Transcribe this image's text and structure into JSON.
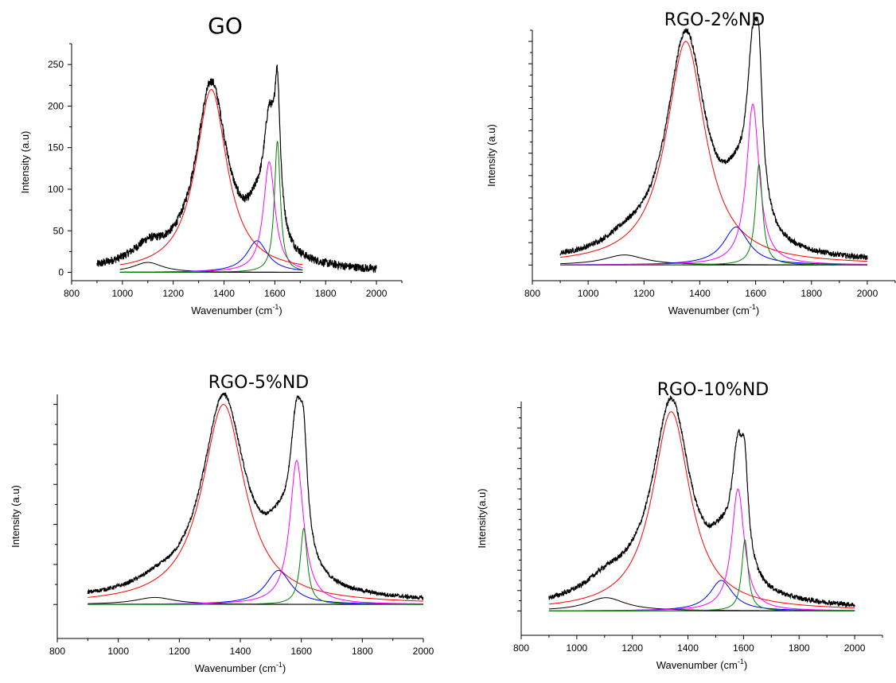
{
  "chart_data": [
    {
      "type": "line",
      "title": "GO",
      "xlabel": "Wavenumber (cm",
      "xlabel_sup": "-1",
      "xlabel_close": ")",
      "ylabel": "Intensity (a.u)",
      "xlim": [
        800,
        2100
      ],
      "ylim": [
        -10,
        275
      ],
      "xticks": [
        800,
        1000,
        1200,
        1400,
        1600,
        1800,
        2000
      ],
      "yticks": [
        0,
        50,
        100,
        150,
        200,
        250
      ],
      "show_ytick_labels": true,
      "baseline": 0,
      "noise": 5,
      "noise_x_range": [
        900,
        2000
      ],
      "fit_x_range": [
        990,
        1710
      ],
      "background": [
        [
          900,
          2
        ],
        [
          1000,
          5
        ],
        [
          1100,
          10
        ],
        [
          1200,
          5
        ],
        [
          1700,
          2
        ],
        [
          2000,
          0
        ]
      ],
      "series": [
        {
          "color": "#000000",
          "center": 1100,
          "height": 12,
          "width": 140
        },
        {
          "color": "#ff0000",
          "center": 1350,
          "height": 220,
          "width": 150
        },
        {
          "color": "#0000ff",
          "center": 1530,
          "height": 38,
          "width": 100
        },
        {
          "color": "#ff00ff",
          "center": 1578,
          "height": 133,
          "width": 55
        },
        {
          "color": "#008000",
          "center": 1610,
          "height": 158,
          "width": 28
        }
      ]
    },
    {
      "type": "line",
      "title": "RGO-2%ND",
      "xlabel": "Wavenumber (cm",
      "xlabel_sup": "-1",
      "xlabel_close": ")",
      "ylabel": "Intensity (a.u)",
      "xlim": [
        800,
        2100
      ],
      "ylim": [
        -0.07,
        1.05
      ],
      "xticks": [
        800,
        1000,
        1200,
        1400,
        1600,
        1800,
        2000
      ],
      "yticks": [
        0,
        0.1,
        0.2,
        0.3,
        0.4,
        0.5,
        0.6,
        0.7,
        0.8,
        0.9,
        1.0
      ],
      "show_ytick_labels": false,
      "baseline": 0,
      "noise": 0.012,
      "noise_x_range": [
        900,
        2000
      ],
      "fit_x_range": [
        900,
        2000
      ],
      "background": [
        [
          900,
          0.01
        ],
        [
          1500,
          0.02
        ],
        [
          1700,
          0.015
        ],
        [
          2000,
          0.01
        ]
      ],
      "series": [
        {
          "color": "#000000",
          "center": 1130,
          "height": 0.045,
          "width": 180
        },
        {
          "color": "#ff0000",
          "center": 1350,
          "height": 1.0,
          "width": 170
        },
        {
          "color": "#0000ff",
          "center": 1530,
          "height": 0.17,
          "width": 110
        },
        {
          "color": "#ff00ff",
          "center": 1590,
          "height": 0.72,
          "width": 55
        },
        {
          "color": "#008000",
          "center": 1612,
          "height": 0.45,
          "width": 30
        }
      ]
    },
    {
      "type": "line",
      "title": "RGO-5%ND",
      "xlabel": "Wavenumber (cm",
      "xlabel_sup": "-1",
      "xlabel_close": ")",
      "ylabel": "Intensity (a.u)",
      "xlim": [
        800,
        2000
      ],
      "ylim": [
        -0.17,
        1.05
      ],
      "xticks": [
        800,
        1000,
        1200,
        1400,
        1600,
        1800,
        2000
      ],
      "yticks": [
        0,
        0.2,
        0.4,
        0.6,
        0.8,
        1.0
      ],
      "show_ytick_labels": false,
      "baseline": 0,
      "noise": 0.01,
      "noise_x_range": [
        900,
        2000
      ],
      "fit_x_range": [
        900,
        2000
      ],
      "background": [
        [
          900,
          0.02
        ],
        [
          1500,
          0.025
        ],
        [
          1700,
          0.02
        ],
        [
          2000,
          0.01
        ]
      ],
      "series": [
        {
          "color": "#000000",
          "center": 1120,
          "height": 0.035,
          "width": 160
        },
        {
          "color": "#ff0000",
          "center": 1345,
          "height": 1.0,
          "width": 170
        },
        {
          "color": "#0000ff",
          "center": 1525,
          "height": 0.17,
          "width": 100
        },
        {
          "color": "#ff00ff",
          "center": 1585,
          "height": 0.72,
          "width": 55
        },
        {
          "color": "#008000",
          "center": 1608,
          "height": 0.38,
          "width": 28
        }
      ]
    },
    {
      "type": "line",
      "title": "RGO-10%ND",
      "xlabel": "Wavenumber (cm",
      "xlabel_sup": "-1",
      "xlabel_close": ")",
      "ylabel": "Intensity(a.u)",
      "xlim": [
        800,
        2100
      ],
      "ylim": [
        -0.12,
        1.03
      ],
      "xticks": [
        800,
        1000,
        1200,
        1400,
        1600,
        1800,
        2000
      ],
      "yticks": [
        0,
        0.1,
        0.2,
        0.3,
        0.4,
        0.5,
        0.6,
        0.7,
        0.8,
        0.9,
        1.0
      ],
      "show_ytick_labels": false,
      "baseline": 0,
      "noise": 0.012,
      "noise_x_range": [
        900,
        2000
      ],
      "fit_x_range": [
        900,
        2000
      ],
      "background": [
        [
          900,
          0.02
        ],
        [
          1200,
          0.06
        ],
        [
          1400,
          0.03
        ],
        [
          1700,
          0.02
        ],
        [
          2000,
          0.01
        ]
      ],
      "series": [
        {
          "color": "#000000",
          "center": 1105,
          "height": 0.065,
          "width": 170
        },
        {
          "color": "#ff0000",
          "center": 1340,
          "height": 0.98,
          "width": 165
        },
        {
          "color": "#0000ff",
          "center": 1520,
          "height": 0.15,
          "width": 100
        },
        {
          "color": "#ff00ff",
          "center": 1580,
          "height": 0.6,
          "width": 55
        },
        {
          "color": "#008000",
          "center": 1605,
          "height": 0.35,
          "width": 28
        }
      ]
    }
  ]
}
